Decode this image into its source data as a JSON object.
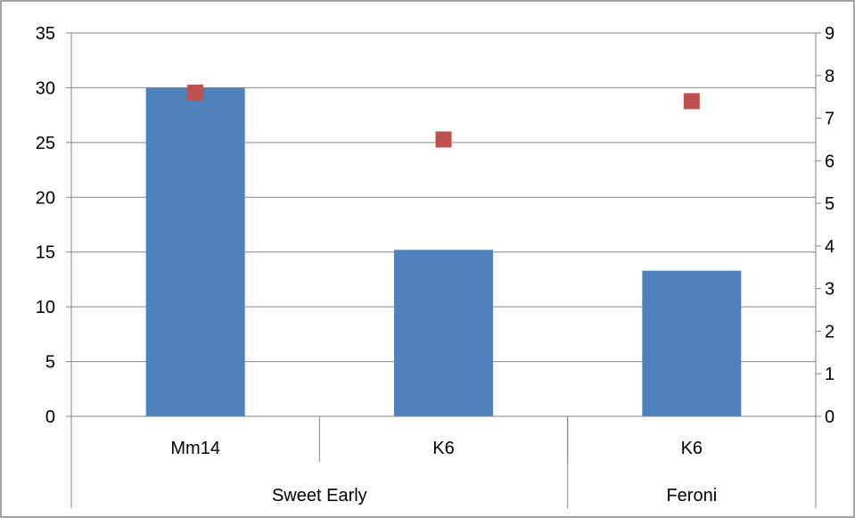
{
  "chart_data": {
    "type": "bar",
    "title": "",
    "xlabel": "",
    "ylabel": "",
    "ylim": [
      0,
      35
    ],
    "y_ticks": [
      0,
      5,
      10,
      15,
      20,
      25,
      30,
      35
    ],
    "y2lim": [
      0,
      9
    ],
    "y2_ticks": [
      0,
      1,
      2,
      3,
      4,
      5,
      6,
      7,
      8,
      9
    ],
    "grid": true,
    "legend": "none",
    "categories": [
      "Mm14",
      "K6",
      "K6"
    ],
    "groups": [
      {
        "label": "Sweet Early",
        "span": 2
      },
      {
        "label": "Feroni",
        "span": 1
      }
    ],
    "series": [
      {
        "type": "bar",
        "axis": "left",
        "color": "#4F81BD",
        "values": [
          30,
          15.2,
          13.3
        ]
      },
      {
        "type": "scatter",
        "axis": "right",
        "color": "#C0504D",
        "marker": "square",
        "values": [
          7.6,
          6.5,
          7.4
        ]
      }
    ]
  }
}
